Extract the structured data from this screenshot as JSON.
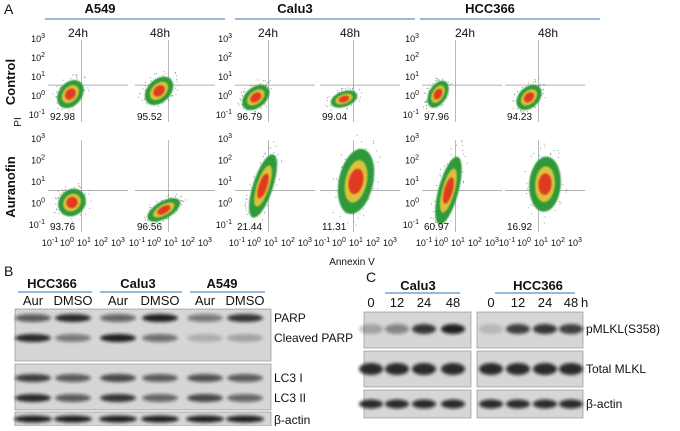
{
  "panel_a": {
    "label": "A",
    "cell_lines": [
      "A549",
      "Calu3",
      "HCC366"
    ],
    "timepoints": [
      "24h",
      "48h"
    ],
    "conditions": [
      "Control",
      "Auranofin"
    ],
    "y_axis_label": "PI",
    "x_axis_label": "Annexin V",
    "tick_base": "10",
    "tick_exponents": [
      "-1",
      "0",
      "1",
      "2",
      "3"
    ],
    "percentages": [
      [
        "92.98",
        "95.52",
        "96.79",
        "99.04",
        "97.96",
        "94.23"
      ],
      [
        "93.76",
        "96.56",
        "21.44",
        "11.31",
        "60.97",
        "16.92"
      ]
    ]
  },
  "panel_b": {
    "label": "B",
    "cell_lines": [
      "HCC366",
      "Calu3",
      "A549"
    ],
    "lanes": [
      "Aur",
      "DMSO"
    ],
    "proteins": [
      "PARP",
      "Cleaved PARP",
      "LC3 I",
      "LC3 II",
      "β-actin"
    ]
  },
  "panel_c": {
    "label": "C",
    "cell_lines": [
      "Calu3",
      "HCC366"
    ],
    "times": [
      "0",
      "12",
      "24",
      "48"
    ],
    "time_unit": "h",
    "proteins": [
      "pMLKL(S358)",
      "Total MLKL",
      "β-actin"
    ]
  }
}
